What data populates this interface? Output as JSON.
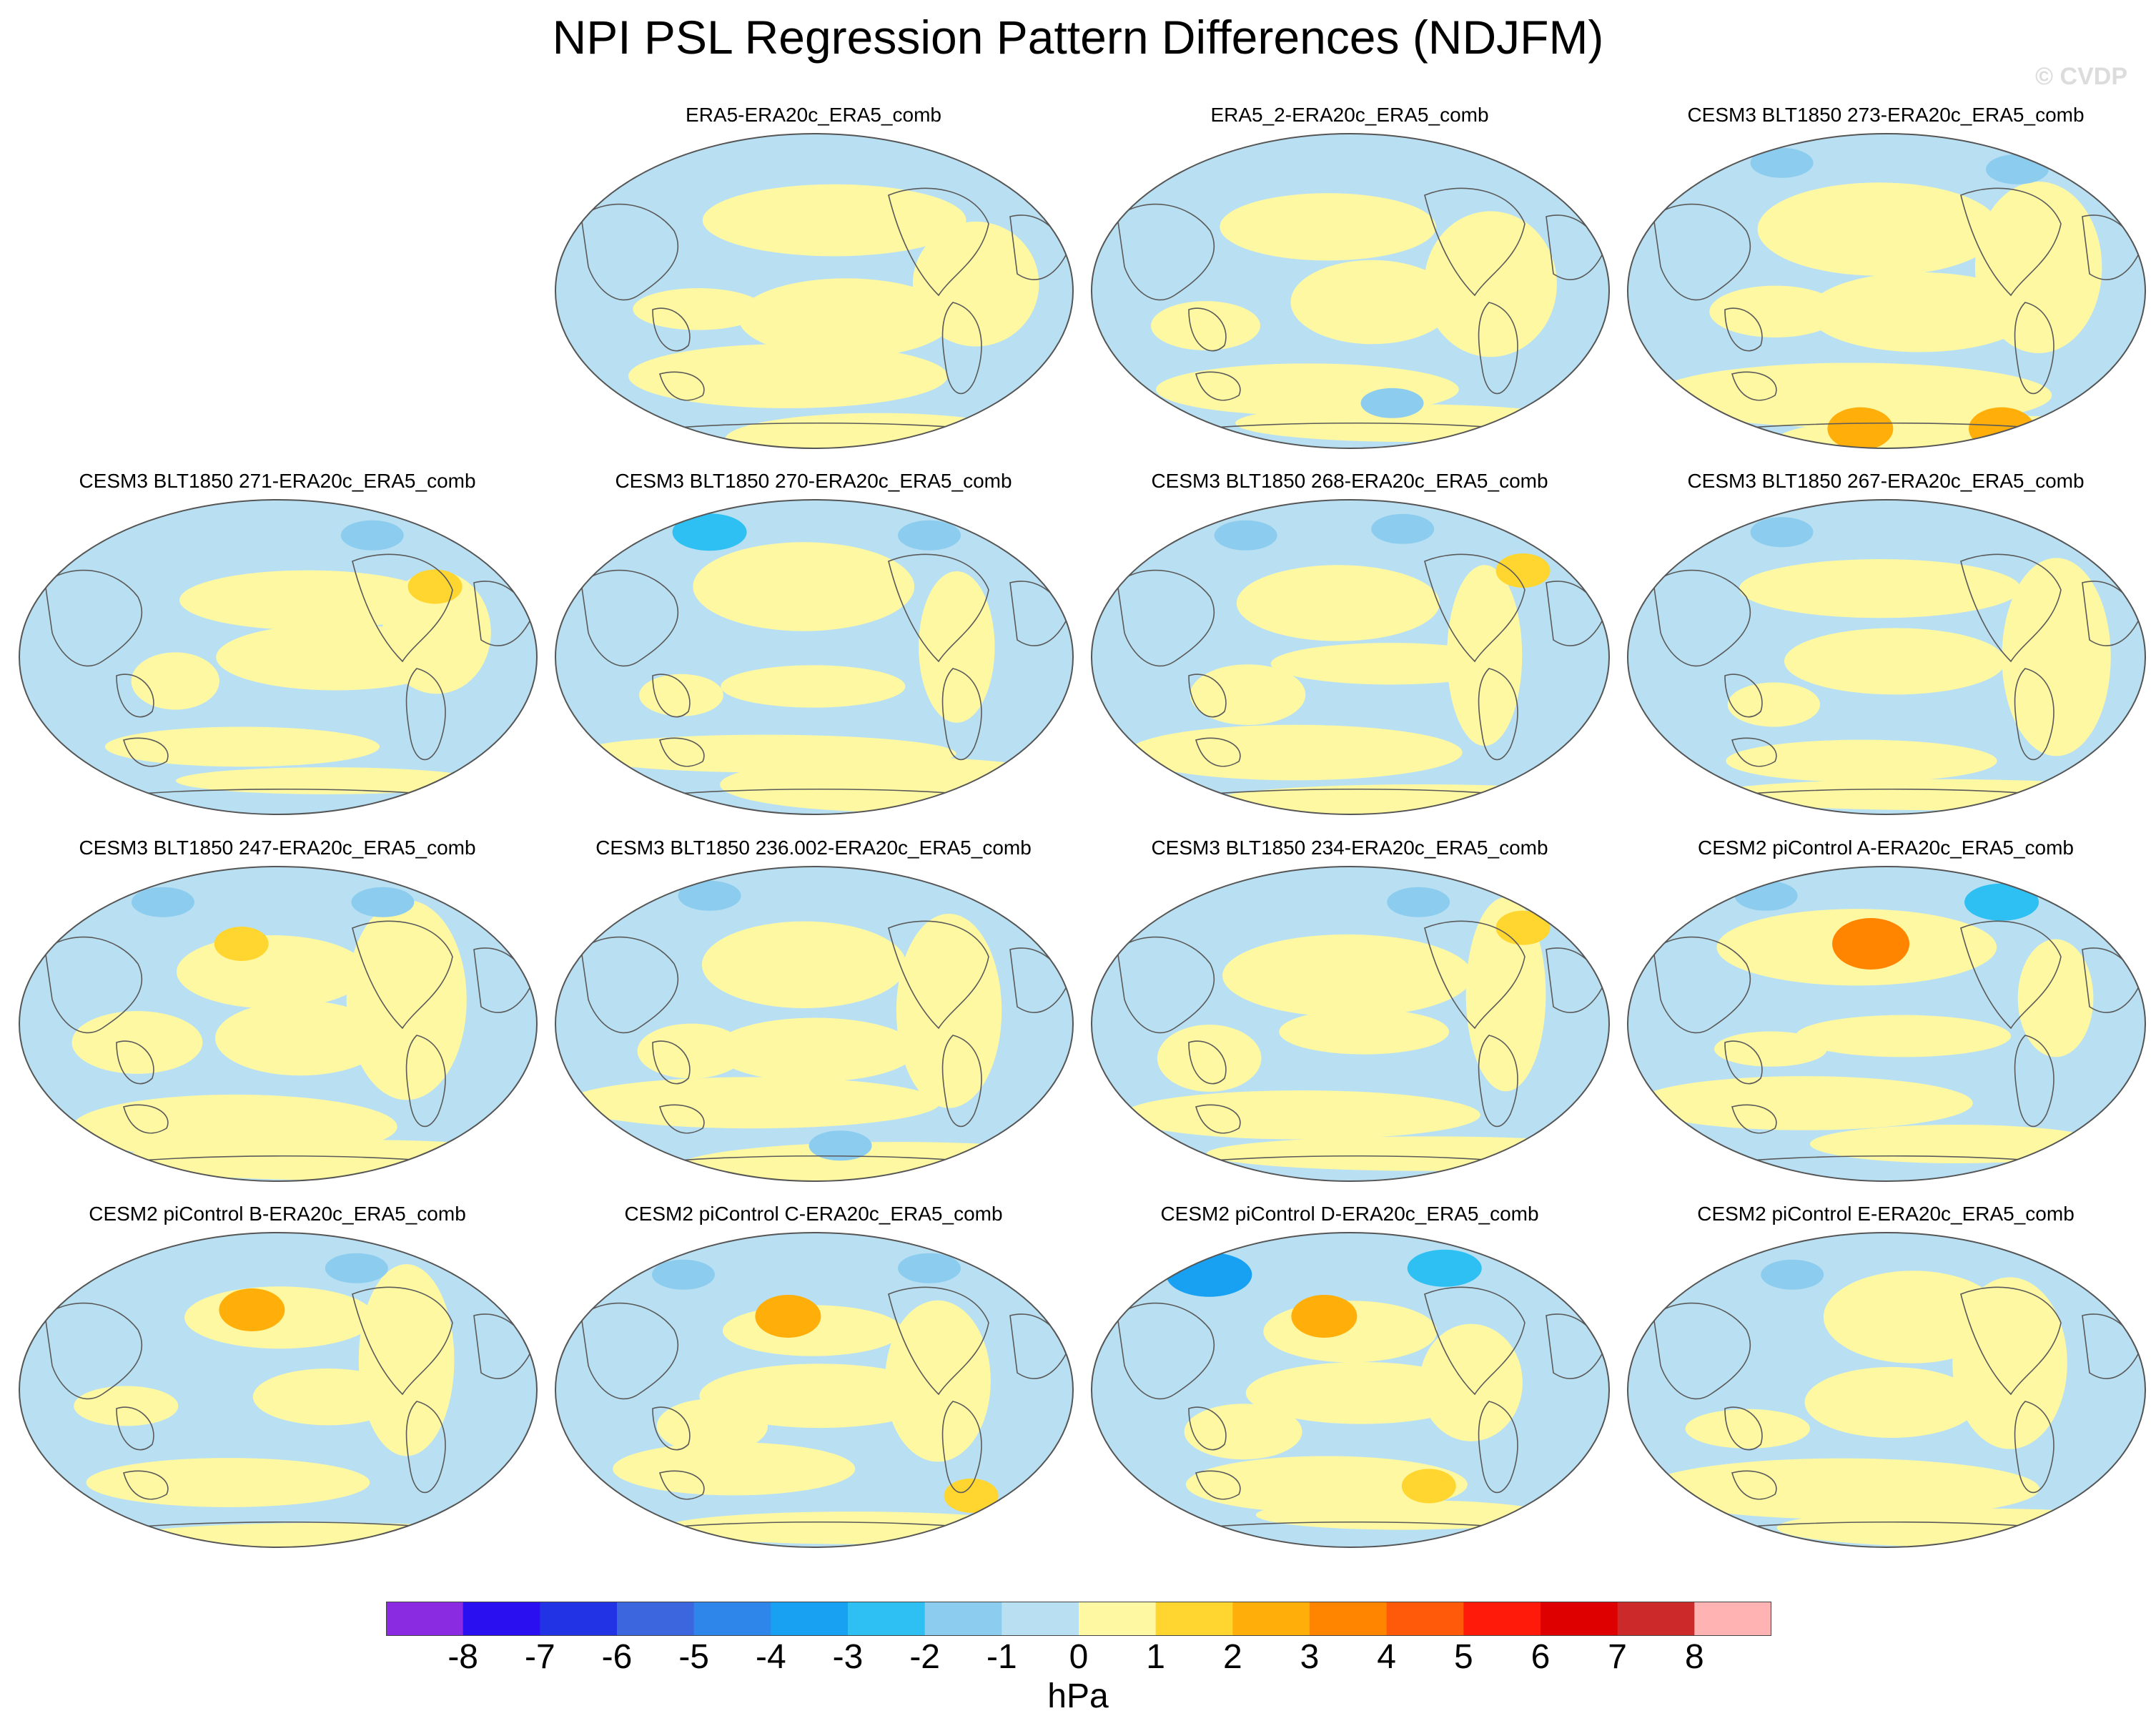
{
  "chart_data": {
    "type": "contour-map-panels",
    "title": "NPI PSL Regression Pattern Differences (NDJFM)",
    "watermark": "© CVDP",
    "projection": "Robinson (Pacific-centered)",
    "panels": [
      {
        "title": "ERA5-ERA20c_ERA5_comb",
        "row": 0,
        "col": 1,
        "positive_blobs": [],
        "negative_blobs": []
      },
      {
        "title": "ERA5_2-ERA20c_ERA5_comb",
        "row": 0,
        "col": 2,
        "positive_blobs": [],
        "negative_blobs": [
          [
            0.58,
            0.85,
            1
          ]
        ]
      },
      {
        "title": "CESM3 BLT1850 273-ERA20c_ERA5_comb",
        "row": 0,
        "col": 3,
        "positive_blobs": [
          [
            0.45,
            0.93,
            2
          ],
          [
            0.72,
            0.93,
            2
          ]
        ],
        "negative_blobs": [
          [
            0.3,
            0.1,
            1
          ],
          [
            0.75,
            0.12,
            1
          ]
        ]
      },
      {
        "title": "CESM3 BLT1850 271-ERA20c_ERA5_comb",
        "row": 1,
        "col": 0,
        "positive_blobs": [
          [
            0.8,
            0.28,
            1
          ]
        ],
        "negative_blobs": [
          [
            0.68,
            0.12,
            1
          ]
        ]
      },
      {
        "title": "CESM3 BLT1850 270-ERA20c_ERA5_comb",
        "row": 1,
        "col": 1,
        "positive_blobs": [],
        "negative_blobs": [
          [
            0.3,
            0.11,
            2
          ],
          [
            0.72,
            0.12,
            1
          ]
        ]
      },
      {
        "title": "CESM3 BLT1850 268-ERA20c_ERA5_comb",
        "row": 1,
        "col": 2,
        "positive_blobs": [
          [
            0.83,
            0.23,
            1
          ]
        ],
        "negative_blobs": [
          [
            0.3,
            0.12,
            1
          ],
          [
            0.6,
            0.1,
            1
          ]
        ]
      },
      {
        "title": "CESM3 BLT1850 267-ERA20c_ERA5_comb",
        "row": 1,
        "col": 3,
        "positive_blobs": [],
        "negative_blobs": [
          [
            0.3,
            0.11,
            1
          ]
        ]
      },
      {
        "title": "CESM3 BLT1850 247-ERA20c_ERA5_comb",
        "row": 2,
        "col": 0,
        "positive_blobs": [
          [
            0.43,
            0.25,
            1
          ]
        ],
        "negative_blobs": [
          [
            0.28,
            0.12,
            1
          ],
          [
            0.7,
            0.12,
            1
          ]
        ]
      },
      {
        "title": "CESM3 BLT1850 236.002-ERA20c_ERA5_comb",
        "row": 2,
        "col": 1,
        "positive_blobs": [],
        "negative_blobs": [
          [
            0.3,
            0.1,
            1
          ],
          [
            0.55,
            0.88,
            1
          ]
        ]
      },
      {
        "title": "CESM3 BLT1850 234-ERA20c_ERA5_comb",
        "row": 2,
        "col": 2,
        "positive_blobs": [
          [
            0.83,
            0.2,
            1
          ]
        ],
        "negative_blobs": [
          [
            0.63,
            0.12,
            1
          ]
        ]
      },
      {
        "title": "CESM2 piControl A-ERA20c_ERA5_comb",
        "row": 2,
        "col": 3,
        "positive_blobs": [
          [
            0.47,
            0.25,
            3
          ]
        ],
        "negative_blobs": [
          [
            0.27,
            0.1,
            1
          ],
          [
            0.72,
            0.12,
            2
          ]
        ]
      },
      {
        "title": "CESM2 piControl B-ERA20c_ERA5_comb",
        "row": 3,
        "col": 0,
        "positive_blobs": [
          [
            0.45,
            0.25,
            2
          ]
        ],
        "negative_blobs": [
          [
            0.65,
            0.12,
            1
          ]
        ]
      },
      {
        "title": "CESM2 piControl C-ERA20c_ERA5_comb",
        "row": 3,
        "col": 1,
        "positive_blobs": [
          [
            0.45,
            0.27,
            2
          ],
          [
            0.8,
            0.83,
            1
          ]
        ],
        "negative_blobs": [
          [
            0.25,
            0.14,
            1
          ],
          [
            0.72,
            0.12,
            1
          ]
        ]
      },
      {
        "title": "CESM2 piControl D-ERA20c_ERA5_comb",
        "row": 3,
        "col": 2,
        "positive_blobs": [
          [
            0.45,
            0.27,
            2
          ],
          [
            0.65,
            0.8,
            1
          ]
        ],
        "negative_blobs": [
          [
            0.23,
            0.14,
            3
          ],
          [
            0.68,
            0.12,
            2
          ]
        ]
      },
      {
        "title": "CESM2 piControl E-ERA20c_ERA5_comb",
        "row": 3,
        "col": 3,
        "positive_blobs": [],
        "negative_blobs": [
          [
            0.32,
            0.14,
            1
          ]
        ]
      }
    ],
    "colorbar": {
      "levels": [
        -8,
        -7,
        -6,
        -5,
        -4,
        -3,
        -2,
        -1,
        0,
        1,
        2,
        3,
        4,
        5,
        6,
        7,
        8
      ],
      "colors": [
        "#8a2be2",
        "#2a10f0",
        "#2233e6",
        "#3b66dd",
        "#2e86ea",
        "#18a0f2",
        "#2ec0f2",
        "#8cccee",
        "#b9e0f2",
        "#fff8a2",
        "#ffd530",
        "#ffae0a",
        "#ff8500",
        "#ff5a0a",
        "#ff1a0a",
        "#de0000",
        "#cc2a2a",
        "#ffb3b3"
      ],
      "label": "hPa",
      "tick_labels": [
        "-8",
        "-7",
        "-6",
        "-5",
        "-4",
        "-3",
        "-2",
        "-1",
        "0",
        "1",
        "2",
        "3",
        "4",
        "5",
        "6",
        "7",
        "8"
      ]
    }
  }
}
